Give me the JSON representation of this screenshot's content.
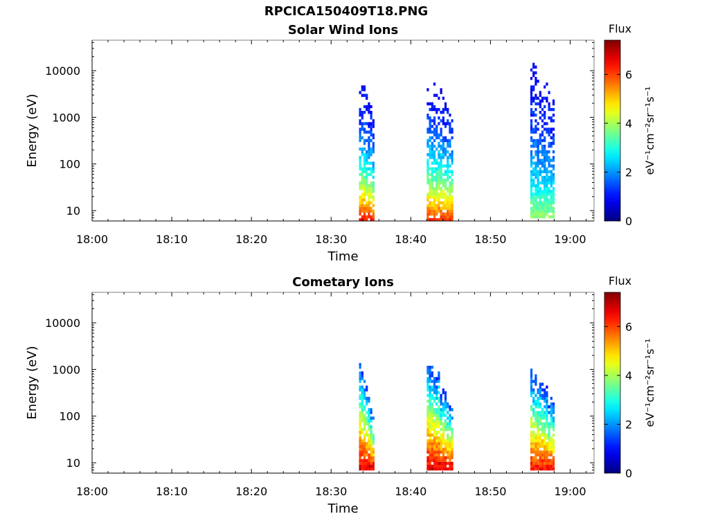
{
  "figure_title": "RPCICA150409T18.PNG",
  "colors": {
    "axis": "#000000",
    "colormap": "jet"
  },
  "chart_data": [
    {
      "type": "heatmap",
      "title": "Solar Wind Ions",
      "xlabel": "Time",
      "ylabel": "Energy (eV)",
      "x_range": [
        "18:00",
        "19:03"
      ],
      "x_ticks": [
        "18:00",
        "18:10",
        "18:20",
        "18:30",
        "18:40",
        "18:50",
        "19:00"
      ],
      "y_scale": "log",
      "y_range": [
        6,
        45000
      ],
      "y_ticks": [
        "10",
        "100",
        "1000",
        "10000"
      ],
      "grid": false,
      "colorbar": {
        "title": "Flux",
        "label": "eV⁻¹cm⁻²sr⁻¹s⁻¹",
        "range": [
          0,
          7.4
        ],
        "ticks": [
          "0",
          "2",
          "4",
          "6"
        ]
      },
      "bursts": [
        {
          "start": "18:33.5",
          "end": "18:35.3",
          "max_energy": 10000,
          "min_energy": 6,
          "peak_flux": 5.6
        },
        {
          "start": "18:42.0",
          "end": "18:45.1",
          "max_energy": 12000,
          "min_energy": 6,
          "peak_flux": 5.4
        },
        {
          "start": "18:55.0",
          "end": "18:58.0",
          "max_energy": 20000,
          "min_energy": 7,
          "peak_flux": 3.0
        }
      ]
    },
    {
      "type": "heatmap",
      "title": "Cometary Ions",
      "xlabel": "Time",
      "ylabel": "Energy (eV)",
      "x_range": [
        "18:00",
        "19:03"
      ],
      "x_ticks": [
        "18:00",
        "18:10",
        "18:20",
        "18:30",
        "18:40",
        "18:50",
        "19:00"
      ],
      "y_scale": "log",
      "y_range": [
        6,
        45000
      ],
      "y_ticks": [
        "10",
        "100",
        "1000",
        "10000"
      ],
      "grid": false,
      "colorbar": {
        "title": "Flux",
        "label": "eV⁻¹cm⁻²sr⁻¹s⁻¹",
        "range": [
          0,
          7.4
        ],
        "ticks": [
          "0",
          "2",
          "4",
          "6"
        ]
      },
      "bursts": [
        {
          "start": "18:33.5",
          "end": "18:35.3",
          "max_energy": 1500,
          "min_energy": 7,
          "peak_flux": 6.8
        },
        {
          "start": "18:42.0",
          "end": "18:45.1",
          "max_energy": 2500,
          "min_energy": 7,
          "peak_flux": 6.8
        },
        {
          "start": "18:55.0",
          "end": "18:58.0",
          "max_energy": 1700,
          "min_energy": 7,
          "peak_flux": 6.5
        }
      ]
    }
  ]
}
